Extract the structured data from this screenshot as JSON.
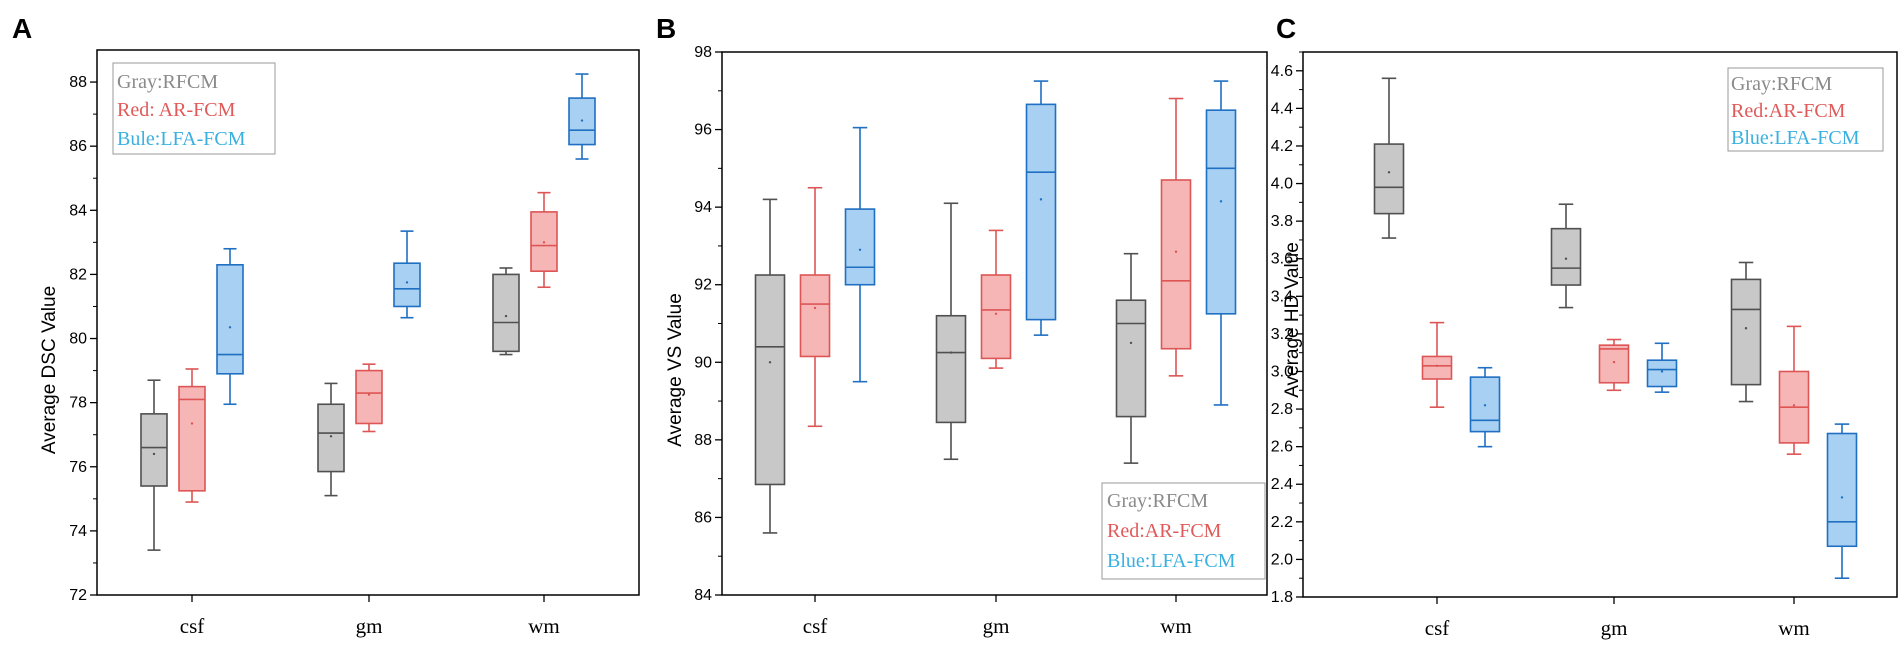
{
  "colors": {
    "gray_fill": "#c8c8c8",
    "gray_line": "#505050",
    "red_fill": "#f7b6b6",
    "red_line": "#dd5555",
    "blue_fill": "#a8d0f2",
    "blue_line": "#1f6fc2",
    "gray_text": "#8a8a8a",
    "red_text": "#e05a5a",
    "blue_text": "#3ab0e0"
  },
  "chart_data": [
    {
      "type": "box",
      "panel": "A",
      "ylabel": "Average DSC Value",
      "ylim": [
        72,
        89
      ],
      "yticks": [
        "72",
        "74",
        "76",
        "78",
        "80",
        "82",
        "84",
        "86",
        "88"
      ],
      "categories": [
        "csf",
        "gm",
        "wm"
      ],
      "legend": [
        "Gray:RFCM",
        "Red: AR-FCM",
        "Bule:LFA-FCM"
      ],
      "legend_position": "top-left",
      "series": [
        {
          "name": "RFCM",
          "color": "gray",
          "boxes": [
            {
              "min": 73.4,
              "q1": 75.4,
              "median": 76.6,
              "q3": 77.65,
              "max": 78.7,
              "mean": 76.4
            },
            {
              "min": 75.1,
              "q1": 75.85,
              "median": 77.05,
              "q3": 77.95,
              "max": 78.6,
              "mean": 76.95
            },
            {
              "min": 79.5,
              "q1": 79.6,
              "median": 80.5,
              "q3": 82.0,
              "max": 82.2,
              "mean": 80.7
            }
          ]
        },
        {
          "name": "AR-FCM",
          "color": "red",
          "boxes": [
            {
              "min": 74.9,
              "q1": 75.25,
              "median": 78.1,
              "q3": 78.5,
              "max": 79.05,
              "mean": 77.35
            },
            {
              "min": 77.1,
              "q1": 77.35,
              "median": 78.3,
              "q3": 79.0,
              "max": 79.2,
              "mean": 78.25
            },
            {
              "min": 81.6,
              "q1": 82.1,
              "median": 82.9,
              "q3": 83.95,
              "max": 84.55,
              "mean": 83.0
            }
          ]
        },
        {
          "name": "LFA-FCM",
          "color": "blue",
          "boxes": [
            {
              "min": 77.95,
              "q1": 78.9,
              "median": 79.5,
              "q3": 82.3,
              "max": 82.8,
              "mean": 80.35
            },
            {
              "min": 80.65,
              "q1": 81.0,
              "median": 81.55,
              "q3": 82.35,
              "max": 83.35,
              "mean": 81.75
            },
            {
              "min": 85.6,
              "q1": 86.05,
              "median": 86.5,
              "q3": 87.5,
              "max": 88.25,
              "mean": 86.8
            }
          ]
        }
      ]
    },
    {
      "type": "box",
      "panel": "B",
      "ylabel": "Average VS Value",
      "ylim": [
        84,
        98
      ],
      "yticks": [
        "84",
        "86",
        "88",
        "90",
        "92",
        "94",
        "96",
        "98"
      ],
      "categories": [
        "csf",
        "gm",
        "wm"
      ],
      "legend": [
        "Gray:RFCM",
        "Red:AR-FCM",
        "Blue:LFA-FCM"
      ],
      "legend_position": "bottom-right",
      "series": [
        {
          "name": "RFCM",
          "color": "gray",
          "boxes": [
            {
              "min": 85.6,
              "q1": 86.85,
              "median": 90.4,
              "q3": 92.25,
              "max": 94.2,
              "mean": 90.0
            },
            {
              "min": 87.5,
              "q1": 88.45,
              "median": 90.25,
              "q3": 91.2,
              "max": 94.1,
              "mean": 90.25
            },
            {
              "min": 87.4,
              "q1": 88.6,
              "median": 91.0,
              "q3": 91.6,
              "max": 92.8,
              "mean": 90.5
            }
          ]
        },
        {
          "name": "AR-FCM",
          "color": "red",
          "boxes": [
            {
              "min": 88.35,
              "q1": 90.15,
              "median": 91.5,
              "q3": 92.25,
              "max": 94.5,
              "mean": 91.4
            },
            {
              "min": 89.85,
              "q1": 90.1,
              "median": 91.35,
              "q3": 92.25,
              "max": 93.4,
              "mean": 91.25
            },
            {
              "min": 89.65,
              "q1": 90.35,
              "median": 92.1,
              "q3": 94.7,
              "max": 96.8,
              "mean": 92.85
            }
          ]
        },
        {
          "name": "LFA-FCM",
          "color": "blue",
          "boxes": [
            {
              "min": 89.5,
              "q1": 92.0,
              "median": 92.45,
              "q3": 93.95,
              "max": 96.05,
              "mean": 92.9
            },
            {
              "min": 90.7,
              "q1": 91.1,
              "median": 94.9,
              "q3": 96.65,
              "max": 97.25,
              "mean": 94.2
            },
            {
              "min": 88.9,
              "q1": 91.25,
              "median": 95.0,
              "q3": 96.5,
              "max": 97.25,
              "mean": 94.15
            }
          ]
        }
      ]
    },
    {
      "type": "box",
      "panel": "C",
      "ylabel": "Average HD Value",
      "ylim": [
        1.8,
        4.7
      ],
      "yticks": [
        "1.8",
        "2.0",
        "2.2",
        "2.4",
        "2.6",
        "2.8",
        "3.0",
        "3.2",
        "3.4",
        "3.6",
        "3.8",
        "4.0",
        "4.2",
        "4.4",
        "4.6"
      ],
      "categories": [
        "csf",
        "gm",
        "wm"
      ],
      "legend": [
        "Gray:RFCM",
        "Red:AR-FCM",
        "Blue:LFA-FCM"
      ],
      "legend_position": "top-right",
      "series": [
        {
          "name": "RFCM",
          "color": "gray",
          "boxes": [
            {
              "min": 3.71,
              "q1": 3.84,
              "median": 3.98,
              "q3": 4.21,
              "max": 4.56,
              "mean": 4.06
            },
            {
              "min": 3.34,
              "q1": 3.46,
              "median": 3.55,
              "q3": 3.76,
              "max": 3.89,
              "mean": 3.6
            },
            {
              "min": 2.84,
              "q1": 2.93,
              "median": 3.33,
              "q3": 3.49,
              "max": 3.58,
              "mean": 3.23
            }
          ]
        },
        {
          "name": "AR-FCM",
          "color": "red",
          "boxes": [
            {
              "min": 2.81,
              "q1": 2.96,
              "median": 3.03,
              "q3": 3.08,
              "max": 3.26,
              "mean": 3.03
            },
            {
              "min": 2.9,
              "q1": 2.94,
              "median": 3.12,
              "q3": 3.14,
              "max": 3.17,
              "mean": 3.05
            },
            {
              "min": 2.56,
              "q1": 2.62,
              "median": 2.81,
              "q3": 3.0,
              "max": 3.24,
              "mean": 2.82
            }
          ]
        },
        {
          "name": "LFA-FCM",
          "color": "blue",
          "boxes": [
            {
              "min": 2.6,
              "q1": 2.68,
              "median": 2.74,
              "q3": 2.97,
              "max": 3.02,
              "mean": 2.82
            },
            {
              "min": 2.89,
              "q1": 2.92,
              "median": 3.01,
              "q3": 3.06,
              "max": 3.15,
              "mean": 3.0
            },
            {
              "min": 1.9,
              "q1": 2.07,
              "median": 2.2,
              "q3": 2.67,
              "max": 2.72,
              "mean": 2.33
            }
          ]
        }
      ]
    }
  ]
}
